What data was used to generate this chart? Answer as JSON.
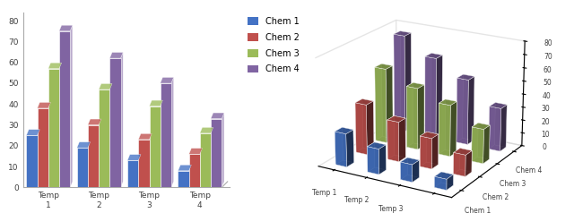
{
  "categories": [
    "Temp 1",
    "Temp 2",
    "Temp 3",
    "Temp 4"
  ],
  "series": [
    "Chem 1",
    "Chem 2",
    "Chem 3",
    "Chem 4"
  ],
  "values": [
    [
      25,
      19,
      13,
      8
    ],
    [
      38,
      30,
      23,
      16
    ],
    [
      57,
      47,
      39,
      26
    ],
    [
      75,
      62,
      50,
      33
    ]
  ],
  "colors": [
    "#4472C4",
    "#C0504D",
    "#9BBB59",
    "#8064A2"
  ],
  "ylim": [
    0,
    80
  ],
  "yticks": [
    0,
    10,
    20,
    30,
    40,
    50,
    60,
    70,
    80
  ],
  "bg_color": "#FFFFFF",
  "legend_labels": [
    "Chem 1",
    "Chem 2",
    "Chem 3",
    "Chem 4"
  ]
}
